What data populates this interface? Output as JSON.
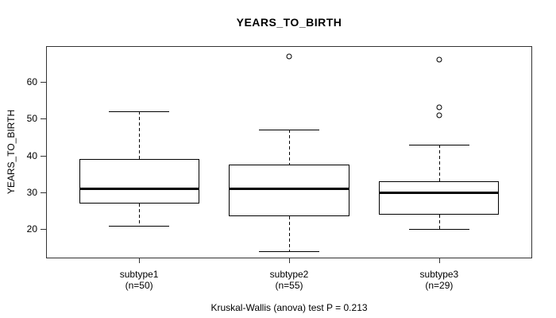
{
  "colors": {
    "line": "#000000",
    "frame": "#333333",
    "background": "#ffffff"
  },
  "chart_data": {
    "type": "boxplot",
    "title": "YEARS_TO_BIRTH",
    "ylabel": "YEARS_TO_BIRTH",
    "xlabel": "",
    "caption": "Kruskal-Wallis (anova) test P = 0.213",
    "grid": false,
    "legend": false,
    "ylim": [
      12.1,
      69.7
    ],
    "xlim": [
      0.38,
      3.62
    ],
    "yticks": [
      20,
      30,
      40,
      50,
      60
    ],
    "box_half_width": 0.4,
    "cap_half_width": 0.2,
    "groups": [
      {
        "label": "subtype1",
        "sublabel": "(n=50)",
        "n": 50,
        "position": 1,
        "whisker_low": 21,
        "q1": 27,
        "median": 31,
        "q3": 39,
        "whisker_high": 52,
        "outliers": []
      },
      {
        "label": "subtype2",
        "sublabel": "(n=55)",
        "n": 55,
        "position": 2,
        "whisker_low": 14,
        "q1": 23.5,
        "median": 31,
        "q3": 37.5,
        "whisker_high": 47,
        "outliers": [
          67
        ]
      },
      {
        "label": "subtype3",
        "sublabel": "(n=29)",
        "n": 29,
        "position": 3,
        "whisker_low": 20,
        "q1": 24,
        "median": 30,
        "q3": 33,
        "whisker_high": 43,
        "outliers": [
          51,
          53,
          66
        ]
      }
    ]
  }
}
